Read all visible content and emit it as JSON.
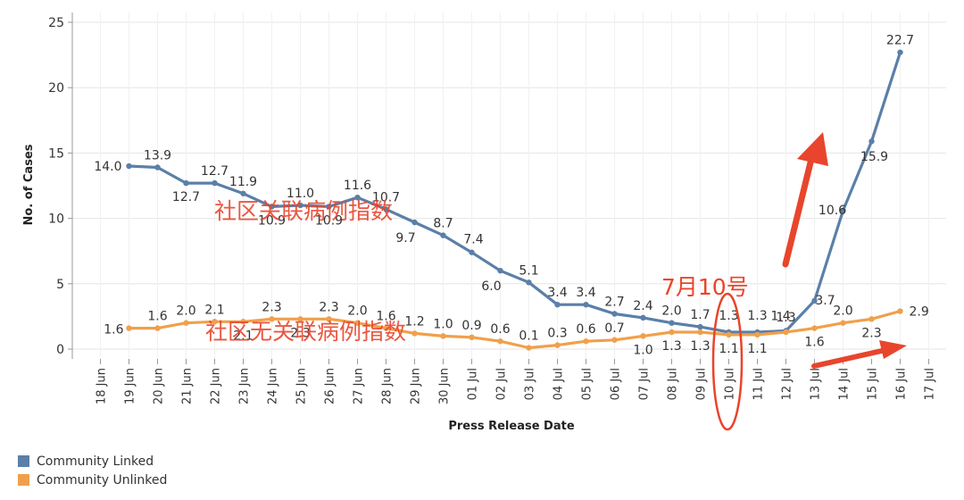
{
  "chart_data": {
    "type": "line",
    "xlabel": "Press Release Date",
    "ylabel": "No. of Cases",
    "ylim": [
      0,
      25
    ],
    "yticks": [
      0,
      5,
      10,
      15,
      20,
      25
    ],
    "categories": [
      "18 Jun",
      "19 Jun",
      "20 Jun",
      "21 Jun",
      "22 Jun",
      "23 Jun",
      "24 Jun",
      "25 Jun",
      "26 Jun",
      "27 Jun",
      "28 Jun",
      "29 Jun",
      "30 Jun",
      "01 Jul",
      "02 Jul",
      "03 Jul",
      "04 Jul",
      "05 Jul",
      "06 Jul",
      "07 Jul",
      "08 Jul",
      "09 Jul",
      "10 Jul",
      "11 Jul",
      "12 Jul",
      "13 Jul",
      "14 Jul",
      "15 Jul",
      "16 Jul",
      "17 Jul"
    ],
    "series": [
      {
        "name": "Community Linked",
        "color": "#5b7fa8",
        "values": [
          null,
          14.0,
          13.9,
          12.7,
          12.7,
          11.9,
          10.9,
          11.0,
          10.9,
          11.6,
          10.7,
          9.7,
          8.7,
          7.4,
          6.0,
          5.1,
          3.4,
          3.4,
          2.7,
          2.4,
          2.0,
          1.7,
          1.3,
          1.3,
          1.4,
          3.7,
          10.6,
          15.9,
          22.7,
          null
        ],
        "labels": [
          null,
          "14.0",
          "13.9",
          "12.7",
          "12.7",
          "11.9",
          "10.9",
          "11.0",
          "10.9",
          "11.6",
          "10.7",
          "9.7",
          "8.7",
          "7.4",
          "6.0",
          "5.1",
          "3.4",
          "3.4",
          "2.7",
          "2.4",
          "2.0",
          "1.7",
          "1.3",
          "1.3",
          "1.4",
          "3.7",
          "10.6",
          "15.9",
          "22.7",
          null
        ]
      },
      {
        "name": "Community Unlinked",
        "color": "#f0a04b",
        "values": [
          null,
          1.6,
          1.6,
          2.0,
          2.1,
          2.1,
          2.3,
          2.3,
          2.3,
          2.0,
          1.6,
          1.2,
          1.0,
          0.9,
          0.6,
          0.1,
          0.3,
          0.6,
          0.7,
          1.0,
          1.3,
          1.3,
          1.1,
          1.1,
          1.3,
          1.6,
          2.0,
          2.3,
          2.9,
          null
        ],
        "labels": [
          null,
          "1.6",
          "1.6",
          "2.0",
          "2.1",
          "2.1",
          "2.3",
          "2.3",
          "2.3",
          "2.0",
          "1.6",
          "1.2",
          "1.0",
          "0.9",
          "0.6",
          "0.1",
          "0.3",
          "0.6",
          "0.7",
          "1.0",
          "1.3",
          "1.3",
          "1.1",
          "1.1",
          "1.3",
          "1.6",
          "2.0",
          "2.3",
          "2.9",
          null
        ]
      }
    ],
    "annotations": [
      {
        "text": "社区关联病例指数",
        "color": "#e8452c"
      },
      {
        "text": "社区无关联病例指数",
        "color": "#e8452c"
      },
      {
        "text": "7月10号",
        "color": "#e8452c"
      }
    ],
    "legend_position": "bottom-left",
    "grid": true
  }
}
